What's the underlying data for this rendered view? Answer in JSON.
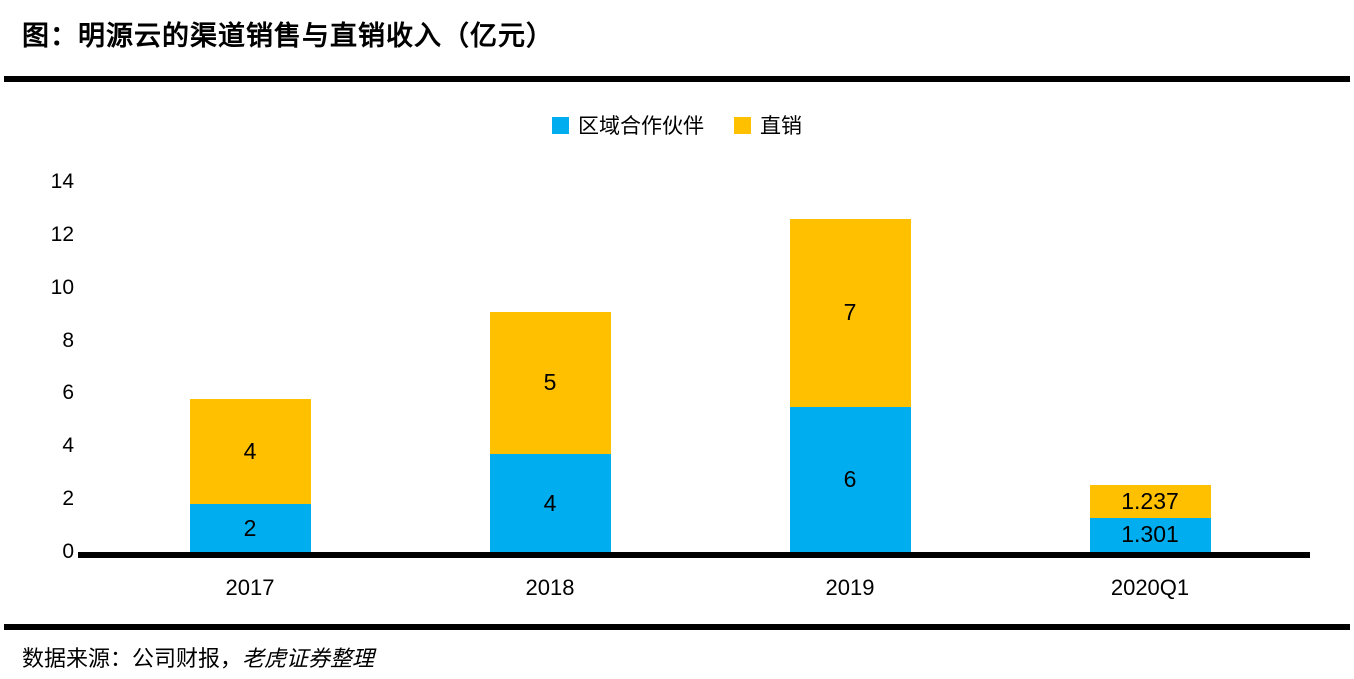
{
  "page": {
    "title": "图：明源云的渠道销售与直销收入（亿元）",
    "footer_prefix": "数据来源：公司财报，",
    "footer_source": "老虎证券整理"
  },
  "colors": {
    "channel_blue": "#00AEEF",
    "direct_yellow": "#FFC000",
    "axis_black": "#000000"
  },
  "chart_data": {
    "type": "bar",
    "stacked": true,
    "title": "图：明源云的渠道销售与直销收入（亿元）",
    "categories": [
      "2017",
      "2018",
      "2019",
      "2020Q1"
    ],
    "series": [
      {
        "name": "区域合作伙伴",
        "color": "#00AEEF",
        "values": [
          1.8,
          3.7,
          5.5,
          1.301
        ],
        "labels": [
          "2",
          "4",
          "6",
          "1.301"
        ]
      },
      {
        "name": "直销",
        "color": "#FFC000",
        "values": [
          4.0,
          5.4,
          7.1,
          1.237
        ],
        "labels": [
          "4",
          "5",
          "7",
          "1.237"
        ]
      }
    ],
    "ylabel": "",
    "xlabel": "",
    "ylim": [
      0,
      14
    ],
    "yticks": [
      0,
      2,
      4,
      6,
      8,
      10,
      12,
      14
    ],
    "legend_position": "top",
    "grid": false
  }
}
